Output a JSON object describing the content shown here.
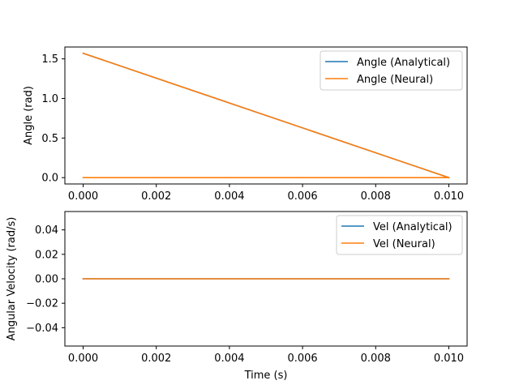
{
  "chart_data": [
    {
      "type": "line",
      "title": "",
      "xlabel": "",
      "ylabel": "Angle (rad)",
      "xlim": [
        -0.0005,
        0.0105
      ],
      "ylim": [
        -0.08,
        1.65
      ],
      "xticks": [
        0.0,
        0.002,
        0.004,
        0.006,
        0.008,
        0.01
      ],
      "xtick_labels": [
        "0.000",
        "0.002",
        "0.004",
        "0.006",
        "0.008",
        "0.010"
      ],
      "yticks": [
        0.0,
        0.5,
        1.0,
        1.5
      ],
      "ytick_labels": [
        "0.0",
        "0.5",
        "1.0",
        "1.5"
      ],
      "grid": false,
      "legend_position": "top-right",
      "series": [
        {
          "name": "Angle (Analytical)",
          "color": "#1f77b4",
          "x": [
            0.0,
            0.01
          ],
          "y": [
            1.5708,
            0.0
          ]
        },
        {
          "name": "Angle (Neural)",
          "color": "#ff7f0e",
          "x": [
            0.0,
            0.01
          ],
          "y": [
            1.5708,
            0.0
          ]
        },
        {
          "name": "",
          "color": "#ff7f0e",
          "x": [
            0.0,
            0.01
          ],
          "y": [
            0.0,
            0.0
          ]
        }
      ]
    },
    {
      "type": "line",
      "title": "",
      "xlabel": "Time (s)",
      "ylabel": "Angular Velocity (rad/s)",
      "xlim": [
        -0.0005,
        0.0105
      ],
      "ylim": [
        -0.055,
        0.055
      ],
      "xticks": [
        0.0,
        0.002,
        0.004,
        0.006,
        0.008,
        0.01
      ],
      "xtick_labels": [
        "0.000",
        "0.002",
        "0.004",
        "0.006",
        "0.008",
        "0.010"
      ],
      "yticks": [
        -0.04,
        -0.02,
        0.0,
        0.02,
        0.04
      ],
      "ytick_labels": [
        "−0.04",
        "−0.02",
        "0.00",
        "0.02",
        "0.04"
      ],
      "grid": false,
      "legend_position": "top-right",
      "series": [
        {
          "name": "Vel (Analytical)",
          "color": "#1f77b4",
          "x": [
            0.0,
            0.01
          ],
          "y": [
            0.0,
            0.0
          ]
        },
        {
          "name": "Vel (Neural)",
          "color": "#ff7f0e",
          "x": [
            0.0,
            0.01
          ],
          "y": [
            0.0,
            0.0
          ]
        }
      ]
    }
  ]
}
